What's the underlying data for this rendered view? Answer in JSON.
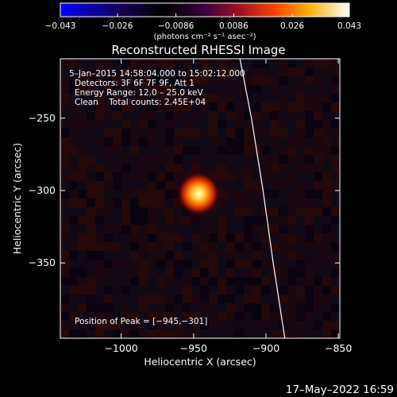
{
  "colorbar": {
    "tick_labels": [
      "−0.043",
      "−0.026",
      "−0.0086",
      "0.0086",
      "0.026",
      "0.043"
    ],
    "tick_values": [
      -0.043,
      -0.026,
      -0.0086,
      0.0086,
      0.026,
      0.043
    ],
    "range": [
      -0.043,
      0.043
    ],
    "units_label": "(photons cm⁻² s⁻¹ asec⁻²)",
    "colormap": "red-temperature",
    "colors": [
      "#0000ff",
      "#1a0040",
      "#000000",
      "#5a0060",
      "#c03000",
      "#ff8000",
      "#ffff80",
      "#ffffff"
    ]
  },
  "annotations": {
    "time_range": "5–Jan–2015 14:58:04.000 to 15:02:12.000",
    "detectors": "Detectors: 3F 6F 7F 9F, Att 1",
    "energy": "Energy Range: 12.0 – 25.0 keV",
    "method": "Clean    Total counts: 2.45E+04",
    "peak": "Position of Peak = [−945,−301]"
  },
  "footer": {
    "date": "17–May–2022 16:59"
  },
  "chart_data": {
    "type": "heatmap",
    "title": "Reconstructed RHESSI Image",
    "xlabel": "Heliocentric X (arcsec)",
    "ylabel": "Heliocentric Y (arcsec)",
    "xlim": [
      -1042,
      -849
    ],
    "ylim": [
      -402,
      -209
    ],
    "x_ticks": [
      -1000,
      -950,
      -900,
      -850
    ],
    "x_tick_labels": [
      "−1000",
      "−950",
      "−900",
      "−850"
    ],
    "y_ticks": [
      -250,
      -300,
      -350
    ],
    "y_tick_labels": [
      "−250",
      "−300",
      "−350"
    ],
    "peak": {
      "x": -945,
      "y": -301
    },
    "limb_curve": [
      [
        -918,
        -209
      ],
      [
        -910,
        -250
      ],
      [
        -902,
        -300
      ],
      [
        -895,
        -350
      ],
      [
        -887,
        -402
      ]
    ],
    "colorbar_range": [
      -0.043,
      0.043
    ]
  }
}
